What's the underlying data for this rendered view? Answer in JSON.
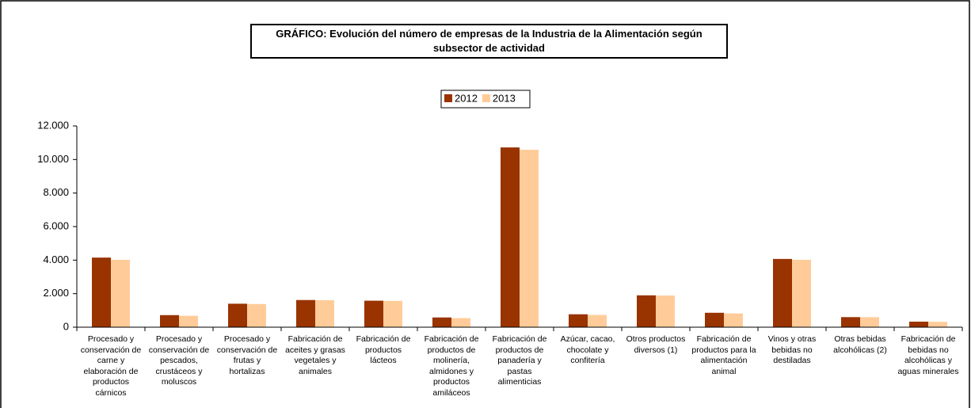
{
  "chart_data": {
    "type": "bar",
    "title": "GRÁFICO: Evolución del número de empresas de la Industria de la Alimentación según subsector de actividad",
    "categories": [
      "Procesado y conservación de carne y elaboración de productos cárnicos",
      "Procesado y conservación de pescados, crustáceos y moluscos",
      "Procesado y conservación de frutas y hortalizas",
      "Fabricación de aceites y grasas vegetales y animales",
      "Fabricación de productos lácteos",
      "Fabricación de productos de molinería, almidones y productos amiláceos",
      "Fabricación de productos de panadería y pastas alimenticias",
      "Azúcar, cacao, chocolate y confitería",
      "Otros productos diversos (1)",
      "Fabricación de productos para la alimentación animal",
      "Vinos y otras bebidas no destiladas",
      "Otras bebidas alcohólicas (2)",
      "Fabricación de bebidas no alcohólicas y aguas minerales"
    ],
    "series": [
      {
        "name": "2012",
        "color": "#993300",
        "values": [
          4150,
          720,
          1400,
          1620,
          1580,
          580,
          10720,
          770,
          1900,
          860,
          4070,
          600,
          330
        ]
      },
      {
        "name": "2013",
        "color": "#ffcc99",
        "values": [
          4020,
          680,
          1380,
          1610,
          1570,
          540,
          10580,
          730,
          1890,
          820,
          4020,
          600,
          320
        ]
      }
    ],
    "ylim": [
      0,
      12000
    ],
    "yticks": [
      0,
      {
        "value": 2000,
        "label": "2.000"
      },
      {
        "value": 4000,
        "label": "4.000"
      },
      {
        "value": 6000,
        "label": "6.000"
      },
      {
        "value": 8000,
        "label": "8.000"
      },
      {
        "value": 10000,
        "label": "10.000"
      },
      {
        "value": 12000,
        "label": "12.000"
      }
    ],
    "grid": false,
    "legend": "top"
  }
}
